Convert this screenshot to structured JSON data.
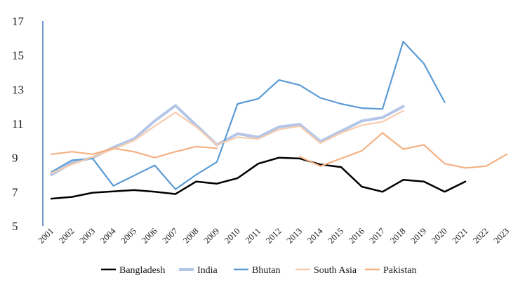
{
  "chart_data": {
    "type": "line",
    "title": "",
    "xlabel": "",
    "ylabel": "",
    "ylim": [
      5,
      17
    ],
    "yticks": [
      "5",
      "7",
      "9",
      "11",
      "13",
      "15",
      "17"
    ],
    "grid": false,
    "legend_position": "bottom",
    "categories": [
      "2001",
      "2002",
      "2003",
      "2004",
      "2005",
      "2006",
      "2007",
      "2008",
      "2009",
      "2010",
      "2011",
      "2012",
      "2013",
      "2014",
      "2015",
      "2016",
      "2017",
      "2018",
      "2019",
      "2020",
      "2021",
      "2022",
      "2023"
    ],
    "series": [
      {
        "name": "Bangladesh",
        "color": "#000000",
        "width": 2.5,
        "values": [
          6.6,
          6.7,
          6.95,
          7.02,
          7.1,
          7.0,
          6.87,
          7.6,
          7.48,
          7.8,
          8.65,
          9.0,
          8.95,
          8.6,
          8.45,
          7.3,
          7.0,
          7.7,
          7.6,
          7.0,
          7.6,
          null,
          null
        ]
      },
      {
        "name": "India",
        "color": "#b4c6e7",
        "width": 4,
        "values": [
          8.0,
          8.7,
          9.0,
          9.6,
          10.1,
          11.15,
          12.05,
          10.9,
          9.75,
          10.4,
          10.2,
          10.8,
          10.95,
          9.95,
          10.55,
          11.15,
          11.35,
          12.0,
          null,
          null,
          null,
          null,
          null
        ]
      },
      {
        "name": "Bhutan",
        "color": "#5b9bd5",
        "width": 2.2,
        "values": [
          8.15,
          8.85,
          8.95,
          7.35,
          7.95,
          8.55,
          7.15,
          8.0,
          8.75,
          12.15,
          12.45,
          13.55,
          13.25,
          12.5,
          12.15,
          11.9,
          11.85,
          15.8,
          14.5,
          12.25,
          null,
          null,
          null
        ]
      },
      {
        "name": "South Asia",
        "color": "#f8cbad",
        "width": 2.2,
        "values": [
          8.1,
          8.6,
          9.05,
          9.5,
          10.0,
          10.85,
          11.65,
          10.8,
          9.75,
          10.2,
          10.1,
          10.65,
          10.85,
          9.85,
          10.45,
          10.9,
          11.1,
          11.75,
          null,
          null,
          null,
          null,
          null
        ]
      },
      {
        "name": "Pakistan",
        "color": "#f4b183",
        "width": 2.2,
        "values": [
          9.2,
          9.35,
          9.2,
          9.55,
          9.35,
          9.0,
          9.35,
          9.65,
          9.55,
          null,
          null,
          null,
          9.05,
          8.5,
          8.95,
          9.4,
          10.45,
          9.5,
          9.75,
          8.65,
          8.4,
          8.5,
          9.2
        ]
      }
    ]
  }
}
